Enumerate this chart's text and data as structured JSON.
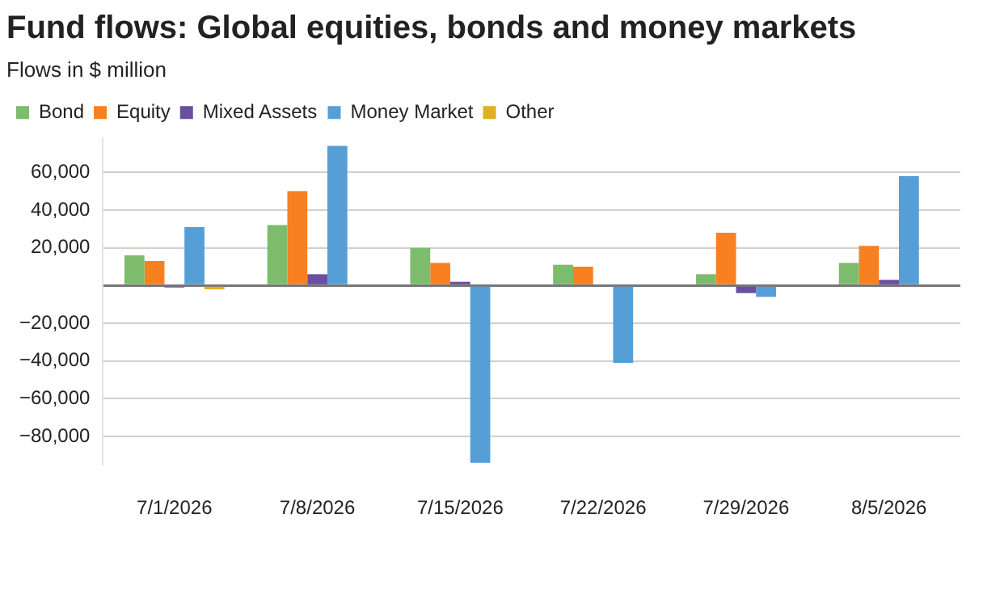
{
  "chart_data": {
    "type": "bar",
    "title": "Fund flows: Global equities, bonds and money markets",
    "subtitle": "Flows in $ million",
    "categories": [
      "7/1/2026",
      "7/8/2026",
      "7/15/2026",
      "7/22/2026",
      "7/29/2026",
      "8/5/2026"
    ],
    "series": [
      {
        "name": "Bond",
        "color": "#7cbc6c",
        "values": [
          16000,
          32000,
          20000,
          11000,
          6000,
          12000
        ]
      },
      {
        "name": "Equity",
        "color": "#f98020",
        "values": [
          13000,
          50000,
          12000,
          10000,
          28000,
          21000
        ]
      },
      {
        "name": "Mixed Assets",
        "color": "#6a4fa0",
        "values": [
          -1000,
          6000,
          2000,
          0,
          -4000,
          3000
        ]
      },
      {
        "name": "Money Market",
        "color": "#569fd6",
        "values": [
          31000,
          74000,
          -94000,
          -41000,
          -6000,
          58000
        ]
      },
      {
        "name": "Other",
        "color": "#e0b020",
        "values": [
          -2000,
          0,
          0,
          0,
          0,
          0
        ]
      }
    ],
    "ylim": [
      -95000,
      78000
    ],
    "yticks": [
      {
        "value": -80000,
        "label": "−80,000"
      },
      {
        "value": -60000,
        "label": "−60,000"
      },
      {
        "value": -40000,
        "label": "−40,000"
      },
      {
        "value": -20000,
        "label": "−20,000"
      },
      {
        "value": 0,
        "label": null
      },
      {
        "value": 20000,
        "label": "20,000"
      },
      {
        "value": 40000,
        "label": "40,000"
      },
      {
        "value": 60000,
        "label": "60,000"
      }
    ],
    "grid": "y",
    "legend": "top left"
  }
}
